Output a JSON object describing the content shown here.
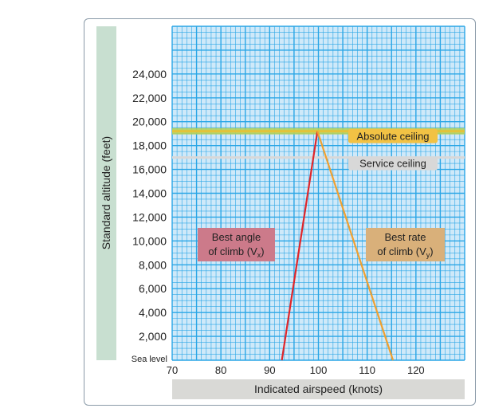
{
  "chart_data": {
    "type": "line",
    "xlabel": "Indicated airspeed (knots)",
    "ylabel": "Standard altitude (feet)",
    "xlim": [
      70,
      130
    ],
    "ylim": [
      0,
      28000
    ],
    "x_ticks": [
      70,
      80,
      90,
      100,
      110,
      120
    ],
    "y_ticks": [
      {
        "value": 0,
        "label": "Sea level"
      },
      {
        "value": 2000,
        "label": "2,000"
      },
      {
        "value": 4000,
        "label": "4,000"
      },
      {
        "value": 6000,
        "label": "6,000"
      },
      {
        "value": 8000,
        "label": "8,000"
      },
      {
        "value": 10000,
        "label": "10,000"
      },
      {
        "value": 12000,
        "label": "12,000"
      },
      {
        "value": 14000,
        "label": "14,000"
      },
      {
        "value": 16000,
        "label": "16,000"
      },
      {
        "value": 18000,
        "label": "18,000"
      },
      {
        "value": 20000,
        "label": "20,000"
      },
      {
        "value": 22000,
        "label": "22,000"
      },
      {
        "value": 24000,
        "label": "24,000"
      }
    ],
    "grid": true,
    "series": [
      {
        "name": "Best angle of climb (Vx)",
        "color": "#e0262a",
        "points": [
          [
            92.5,
            0
          ],
          [
            99.8,
            19200
          ]
        ]
      },
      {
        "name": "Best rate of climb (Vy)",
        "color": "#f0a030",
        "points": [
          [
            99.8,
            19200
          ],
          [
            115.3,
            0
          ]
        ]
      }
    ],
    "ceilings": [
      {
        "name": "Absolute ceiling",
        "altitude": 19200,
        "color": "#e8c83a",
        "label_bg": "#f2c244"
      },
      {
        "name": "Service ceiling",
        "altitude": 17000,
        "color": "#d8d8d8",
        "label_bg": "#d8d8d8"
      }
    ],
    "annotations": [
      {
        "line1": "Best angle",
        "line2": "of climb (V",
        "sub": "x",
        "end": ")",
        "bg": "#cc7a8a"
      },
      {
        "line1": "Best rate",
        "line2": "of climb (V",
        "sub": "y",
        "end": ")",
        "bg": "#d9b07a"
      }
    ]
  }
}
